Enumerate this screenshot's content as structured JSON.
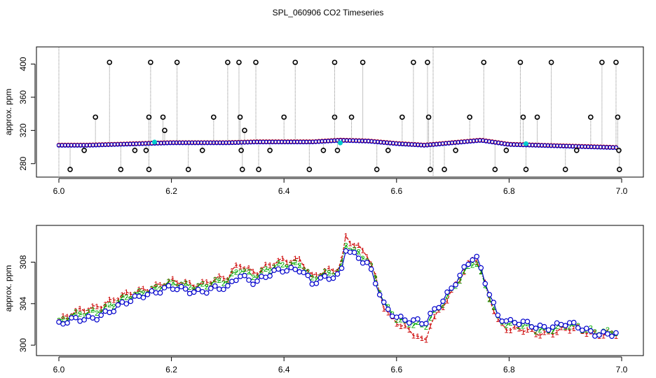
{
  "title": "SPL_060906  CO2 Timeseries",
  "chart_data": [
    {
      "type": "scatter",
      "ylabel": "approx. ppm",
      "xlim": [
        6.0,
        7.0
      ],
      "ylim": [
        268,
        408
      ],
      "xticks": [
        6.0,
        6.2,
        6.4,
        6.6,
        6.8,
        7.0
      ],
      "xtick_labels": [
        "6.0",
        "6.2",
        "6.4",
        "6.6",
        "6.8",
        "7.0"
      ],
      "yticks": [
        280,
        320,
        360,
        400
      ],
      "ytick_labels": [
        "280",
        "320",
        "360",
        "400"
      ],
      "colors": {
        "baseline_blue": "#0000cc",
        "baseline_red": "#cc0000",
        "outlier": "#000000",
        "spike_line": "#888888",
        "cyan": "#00cccc"
      },
      "baseline": {
        "x": [
          6.0,
          6.05,
          6.1,
          6.15,
          6.2,
          6.25,
          6.3,
          6.35,
          6.4,
          6.45,
          6.5,
          6.55,
          6.6,
          6.65,
          6.7,
          6.75,
          6.8,
          6.85,
          6.9,
          6.95,
          7.0
        ],
        "y": [
          302,
          302,
          303,
          304,
          305,
          305,
          305,
          306,
          306,
          306,
          308,
          307,
          304,
          302,
          305,
          308,
          303,
          302,
          301,
          300,
          299
        ]
      },
      "outliers": {
        "x": [
          6.02,
          6.045,
          6.065,
          6.09,
          6.11,
          6.135,
          6.155,
          6.16,
          6.16,
          6.163,
          6.185,
          6.188,
          6.21,
          6.23,
          6.255,
          6.275,
          6.3,
          6.32,
          6.322,
          6.324,
          6.326,
          6.33,
          6.35,
          6.355,
          6.375,
          6.4,
          6.42,
          6.445,
          6.47,
          6.49,
          6.49,
          6.495,
          6.52,
          6.54,
          6.565,
          6.585,
          6.61,
          6.63,
          6.655,
          6.657,
          6.66,
          6.685,
          6.705,
          6.73,
          6.755,
          6.775,
          6.795,
          6.82,
          6.825,
          6.83,
          6.85,
          6.875,
          6.9,
          6.92,
          6.945,
          6.965,
          6.99,
          6.993,
          6.995,
          6.996
        ],
        "y": [
          273,
          296,
          336,
          402,
          273,
          296,
          296,
          336,
          273,
          402,
          336,
          320,
          402,
          273,
          296,
          336,
          402,
          402,
          336,
          296,
          273,
          320,
          402,
          273,
          296,
          336,
          402,
          273,
          296,
          402,
          336,
          296,
          336,
          402,
          273,
          296,
          336,
          402,
          402,
          336,
          273,
          273,
          296,
          336,
          402,
          273,
          296,
          402,
          336,
          273,
          336,
          402,
          273,
          296,
          336,
          402,
          402,
          336,
          296,
          273
        ]
      },
      "cyan_points": {
        "x": [
          6.17,
          6.5,
          6.83
        ],
        "y": [
          306,
          305,
          304
        ]
      }
    },
    {
      "type": "line",
      "ylabel": "approx. ppm",
      "xlim": [
        6.0,
        7.0
      ],
      "ylim": [
        299.4,
        311.0
      ],
      "xticks": [
        6.0,
        6.2,
        6.4,
        6.6,
        6.8,
        7.0
      ],
      "xtick_labels": [
        "6.0",
        "6.2",
        "6.4",
        "6.6",
        "6.8",
        "7.0"
      ],
      "yticks": [
        300,
        304,
        308
      ],
      "ytick_labels": [
        "300",
        "304",
        "308"
      ],
      "series": [
        {
          "marker": "1",
          "color": "#cc0000",
          "dash": "dashed",
          "x": [
            6.0,
            6.05,
            6.1,
            6.15,
            6.2,
            6.25,
            6.3,
            6.32,
            6.35,
            6.4,
            6.43,
            6.45,
            6.5,
            6.51,
            6.55,
            6.58,
            6.61,
            6.64,
            6.65,
            6.66,
            6.7,
            6.74,
            6.78,
            6.8,
            6.85,
            6.9,
            6.95,
            6.99
          ],
          "y": [
            302.3,
            303.6,
            304.3,
            305.5,
            306.0,
            306.0,
            306.4,
            308.0,
            307.0,
            308.2,
            308.4,
            306.5,
            307.5,
            310.6,
            308.5,
            303.3,
            302.0,
            300.6,
            299.9,
            302.0,
            305.5,
            308.5,
            302.5,
            301.5,
            301.2,
            301.5,
            301.3,
            301.0
          ]
        },
        {
          "marker": "2",
          "color": "#00aa00",
          "dash": "dashdot",
          "x": [
            6.0,
            6.05,
            6.1,
            6.15,
            6.2,
            6.25,
            6.3,
            6.32,
            6.35,
            6.4,
            6.43,
            6.45,
            6.5,
            6.51,
            6.55,
            6.58,
            6.61,
            6.64,
            6.65,
            6.66,
            6.7,
            6.74,
            6.78,
            6.8,
            6.85,
            6.9,
            6.95,
            6.99
          ],
          "y": [
            302.2,
            303.2,
            303.9,
            305.3,
            305.8,
            305.8,
            306.1,
            307.5,
            306.7,
            307.8,
            308.0,
            306.3,
            307.2,
            309.9,
            308.0,
            303.8,
            302.4,
            301.8,
            301.6,
            302.6,
            305.6,
            308.1,
            302.8,
            302.0,
            301.6,
            301.8,
            301.5,
            301.2
          ]
        },
        {
          "marker": "3",
          "color": "#0000cc",
          "dash": "solid",
          "x": [
            6.0,
            6.05,
            6.1,
            6.15,
            6.2,
            6.25,
            6.3,
            6.32,
            6.35,
            6.4,
            6.43,
            6.45,
            6.5,
            6.51,
            6.55,
            6.58,
            6.61,
            6.64,
            6.65,
            6.66,
            6.7,
            6.74,
            6.78,
            6.8,
            6.85,
            6.9,
            6.95,
            6.99
          ],
          "y": [
            302.0,
            302.6,
            303.4,
            305.0,
            305.4,
            305.3,
            305.4,
            306.9,
            306.1,
            307.3,
            307.5,
            305.9,
            306.8,
            309.5,
            307.6,
            303.6,
            302.6,
            302.1,
            301.9,
            302.8,
            305.8,
            308.6,
            303.0,
            302.2,
            301.8,
            302.0,
            301.3,
            301.0
          ]
        }
      ]
    }
  ]
}
